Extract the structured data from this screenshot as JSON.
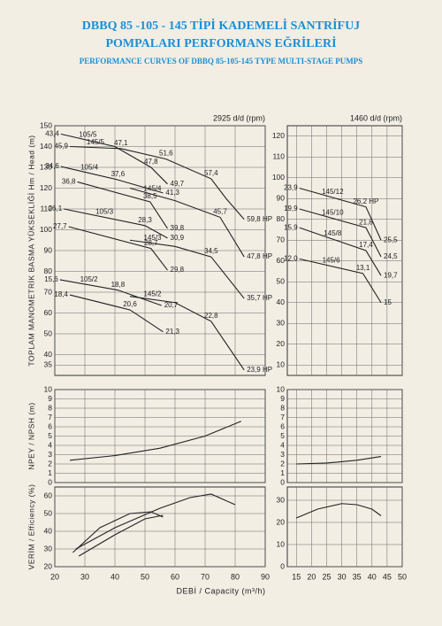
{
  "header": {
    "title": "DBBQ 85 -105 - 145 TİPİ KADEMELİ SANTRİFUJ",
    "subtitle": "POMPALARI PERFORMANS EĞRİLERİ",
    "english_title": "PERFORMANCE CURVES OF DBBQ 85-105-145 TYPE MULTI-STAGE PUMPS"
  },
  "chart_data": [
    {
      "type": "line",
      "label": "2925 d/d (rpm)",
      "ylabel": "TOPLAM MANOMETRİK BASMA YÜKSEKLİĞİ Hm / Head (m)",
      "xlim": [
        20,
        90
      ],
      "xticks": [
        20,
        30,
        40,
        50,
        60,
        70,
        80,
        90
      ],
      "ylim": [
        30,
        150
      ],
      "yticks": [
        35,
        40,
        50,
        60,
        70,
        80,
        90,
        100,
        110,
        120,
        130,
        140,
        150
      ],
      "series": [
        {
          "name": "105/5",
          "color": "#222",
          "x": [
            22,
            40,
            52,
            57.5
          ],
          "values": [
            146,
            140,
            130,
            122
          ],
          "power": [
            43.4,
            null,
            47.8,
            49.7
          ],
          "power_labels": [
            "43,4",
            null,
            "47,8",
            "49,7"
          ]
        },
        {
          "name": "145/5",
          "color": "#222",
          "x": [
            25,
            42,
            57,
            72,
            77,
            83
          ],
          "values": [
            140,
            139,
            134,
            124.5,
            115,
            105
          ],
          "power": [
            45.9,
            47.1,
            51.6,
            57.4,
            null,
            59.8
          ],
          "power_labels": [
            "45,9",
            "47,1",
            "51,6",
            "57,4",
            null,
            "59,8 HP"
          ]
        },
        {
          "name": "105/4",
          "color": "#222",
          "x": [
            22,
            41,
            56
          ],
          "values": [
            130.4,
            124,
            117.7
          ],
          "power": [
            34.6,
            37.6,
            41.3
          ],
          "power_labels": [
            "34,6",
            "37,6",
            "41,3"
          ]
        },
        {
          "color": "#222",
          "x": [
            27.5,
            51.7,
            57.5
          ],
          "values": [
            123,
            113.4,
            100.6
          ],
          "power": [
            36.8,
            38.5,
            39.8
          ],
          "power_labels": [
            "36,8",
            "38,5",
            "39,8"
          ]
        },
        {
          "name": "145/4",
          "color": "#222",
          "x": [
            45,
            60,
            75,
            83
          ],
          "values": [
            120,
            114,
            106,
            87
          ],
          "power": [
            null,
            null,
            45.7,
            47.8
          ],
          "power_labels": [
            null,
            null,
            "45,7",
            "47,8 HP"
          ]
        },
        {
          "name": "105/3",
          "color": "#222",
          "x": [
            23,
            50,
            57.5
          ],
          "values": [
            110,
            102,
            96
          ],
          "power": [
            26.1,
            28.3,
            30.9
          ],
          "power_labels": [
            "26,1",
            "28,3",
            "30,9"
          ]
        },
        {
          "color": "#222",
          "x": [
            24.6,
            52,
            57.5
          ],
          "values": [
            101.5,
            91,
            80.6
          ],
          "power": [
            27.7,
            28.7,
            29.8
          ],
          "power_labels": [
            "27,7",
            "28,7",
            "29,8"
          ]
        },
        {
          "name": "145/3",
          "color": "#222",
          "x": [
            45,
            60,
            72,
            83
          ],
          "values": [
            95,
            92,
            87,
            67
          ],
          "power": [
            null,
            null,
            34.5,
            35.7
          ],
          "power_labels": [
            null,
            null,
            "34,5",
            "35,7 HP"
          ]
        },
        {
          "name": "105/2",
          "color": "#222",
          "x": [
            21.7,
            41,
            55.5
          ],
          "values": [
            76,
            71,
            63.6
          ],
          "power": [
            15.6,
            18.8,
            20.7
          ],
          "power_labels": [
            "15,6",
            "18,8",
            "20,7"
          ]
        },
        {
          "color": "#222",
          "x": [
            25,
            45,
            56
          ],
          "values": [
            68.7,
            61.5,
            51
          ],
          "power": [
            18.4,
            20.6,
            21.3
          ],
          "power_labels": [
            "18,4",
            "20,6",
            "21,3"
          ]
        },
        {
          "name": "145/2",
          "color": "#222",
          "x": [
            45,
            60,
            72,
            83
          ],
          "values": [
            68,
            65,
            56,
            32.6
          ],
          "power": [
            null,
            null,
            22.8,
            23.9
          ],
          "power_labels": [
            null,
            null,
            "22,8",
            "23,9 HP"
          ]
        }
      ]
    },
    {
      "type": "line",
      "label": "1460 d/d (rpm)",
      "xlim": [
        12,
        50
      ],
      "xticks": [
        15,
        20,
        25,
        30,
        35,
        40,
        45,
        50
      ],
      "ylim": [
        5,
        125
      ],
      "yticks": [
        10,
        20,
        30,
        40,
        50,
        60,
        70,
        80,
        90,
        100,
        110,
        120
      ],
      "series": [
        {
          "name": "145/12",
          "color": "#222",
          "x": [
            16,
            38,
            43
          ],
          "values": [
            95,
            86,
            70
          ],
          "power": [
            23.9,
            26.2,
            25.5
          ],
          "power_labels": [
            "23,9",
            "26,2 HP",
            "25,5"
          ]
        },
        {
          "name": "145/10",
          "color": "#222",
          "x": [
            16,
            38,
            43
          ],
          "values": [
            85,
            76,
            62
          ],
          "power": [
            19.9,
            21.8,
            24.5
          ],
          "power_labels": [
            "19,9",
            "21,8",
            "24,5"
          ]
        },
        {
          "name": "145/8",
          "color": "#222",
          "x": [
            16,
            38,
            43
          ],
          "values": [
            76,
            65,
            53
          ],
          "power": [
            15.9,
            17.4,
            19.7
          ],
          "power_labels": [
            "15,9",
            "17,4",
            "19,7"
          ]
        },
        {
          "name": "145/6",
          "color": "#222",
          "x": [
            16,
            37,
            43
          ],
          "values": [
            61,
            54,
            40
          ],
          "power": [
            12.0,
            13.1,
            15
          ],
          "power_labels": [
            "12,0",
            "13,1",
            "15"
          ]
        }
      ]
    },
    {
      "type": "line",
      "ylabel": "NPEY / NPSH (m)",
      "xlim": [
        20,
        90
      ],
      "xticks": [
        20,
        30,
        40,
        50,
        60,
        70,
        80,
        90
      ],
      "ylim": [
        0,
        10
      ],
      "yticks": [
        0,
        1,
        2,
        3,
        4,
        5,
        6,
        7,
        8,
        9,
        10
      ],
      "series": [
        {
          "color": "#222",
          "x": [
            25,
            40,
            55,
            70,
            82
          ],
          "values": [
            2.4,
            2.9,
            3.7,
            5.0,
            6.6
          ]
        }
      ]
    },
    {
      "type": "line",
      "xlim": [
        12,
        50
      ],
      "xticks": [
        15,
        20,
        25,
        30,
        35,
        40,
        45,
        50
      ],
      "ylim": [
        0,
        10
      ],
      "yticks": [
        0,
        1,
        2,
        3,
        4,
        5,
        6,
        7,
        8,
        9,
        10
      ],
      "series": [
        {
          "color": "#222",
          "x": [
            15,
            25,
            35,
            43
          ],
          "values": [
            2.0,
            2.1,
            2.4,
            2.8
          ]
        }
      ]
    },
    {
      "type": "line",
      "ylabel": "VERİM / Efficiency (%)",
      "xlabel": "DEBİ / Capacity (m³/h)",
      "xlim": [
        20,
        90
      ],
      "xticks": [
        20,
        30,
        40,
        50,
        60,
        70,
        80,
        90
      ],
      "ylim": [
        20,
        65
      ],
      "yticks": [
        20,
        30,
        40,
        50,
        60
      ],
      "series": [
        {
          "color": "#222",
          "x": [
            26,
            35,
            45,
            52,
            56
          ],
          "values": [
            28,
            42,
            50,
            51,
            48
          ]
        },
        {
          "color": "#222",
          "x": [
            27,
            40,
            55,
            65,
            72,
            80
          ],
          "values": [
            30,
            42,
            53,
            59,
            61,
            55
          ]
        },
        {
          "color": "#222",
          "x": [
            28,
            40,
            50,
            56
          ],
          "values": [
            26,
            38,
            47,
            49
          ]
        }
      ]
    },
    {
      "type": "line",
      "xlim": [
        12,
        50
      ],
      "xticks": [
        15,
        20,
        25,
        30,
        35,
        40,
        45,
        50
      ],
      "ylim": [
        0,
        36
      ],
      "yticks": [
        0,
        10,
        20,
        30
      ],
      "series": [
        {
          "color": "#222",
          "x": [
            15,
            22,
            30,
            35,
            40,
            43
          ],
          "values": [
            22,
            26,
            28.5,
            28,
            26,
            23
          ]
        }
      ]
    }
  ]
}
